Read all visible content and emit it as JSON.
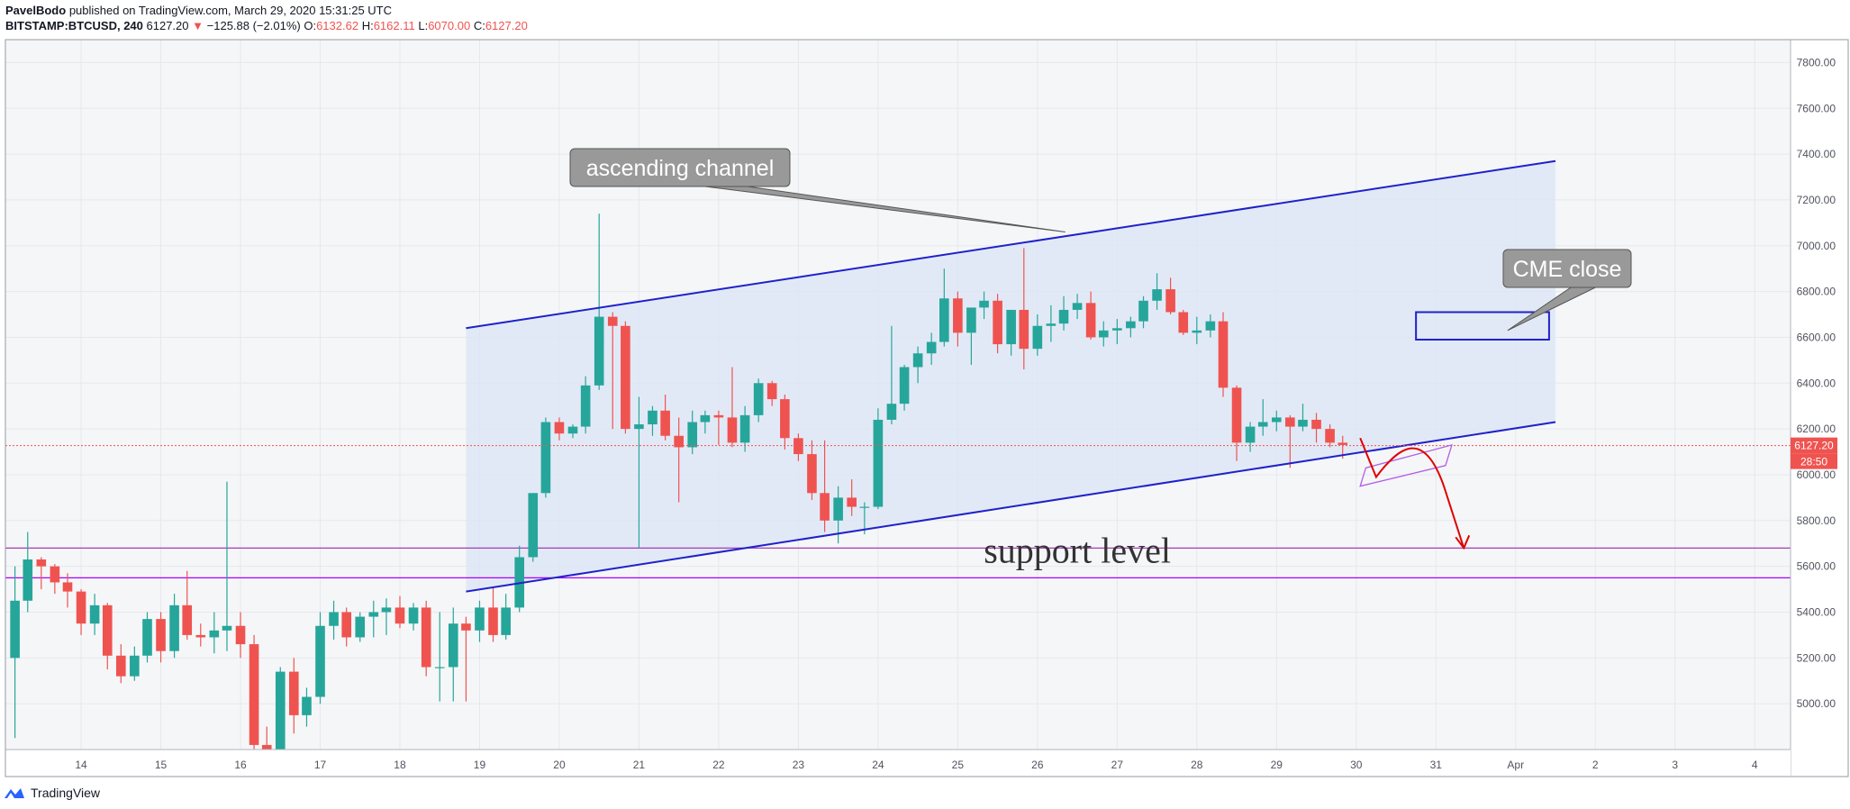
{
  "header": {
    "author": "PavelBodo",
    "published_text": "published on TradingView.com, March 29, 2020 15:31:25 UTC",
    "symbol": "BITSTAMP:BTCUSD, 240",
    "last": "6127.20",
    "change": "−125.88 (−2.01%)",
    "o_label": "O:",
    "o_value": "6132.62",
    "h_label": "H:",
    "h_value": "6162.11",
    "l_label": "L:",
    "l_value": "6070.00",
    "c_label": "C:",
    "c_value": "6127.20"
  },
  "footer": {
    "brand": "TradingView"
  },
  "colors": {
    "up": "#26a69a",
    "down": "#ef5350",
    "channel": "#1f22c9",
    "support": "#9c27b0",
    "channel_fill": "#dbe4f6",
    "arrow": "#e00000"
  },
  "chart_data": {
    "type": "candlestick",
    "title": "",
    "ylim": [
      4800,
      7900
    ],
    "y_ticks": [
      5000,
      5200,
      5400,
      5600,
      5800,
      6000,
      6200,
      6400,
      6600,
      6800,
      7000,
      7200,
      7400,
      7600,
      7800
    ],
    "y_tick_labels": [
      "5000.00",
      "5200.00",
      "5400.00",
      "5600.00",
      "5800.00",
      "6000.00",
      "6200.00",
      "6400.00",
      "6600.00",
      "6800.00",
      "7000.00",
      "7200.00",
      "7400.00",
      "7600.00",
      "7800.00"
    ],
    "x_ticks": [
      {
        "label": "14",
        "day": 14
      },
      {
        "label": "15",
        "day": 15
      },
      {
        "label": "16",
        "day": 16
      },
      {
        "label": "17",
        "day": 17
      },
      {
        "label": "18",
        "day": 18
      },
      {
        "label": "19",
        "day": 19
      },
      {
        "label": "20",
        "day": 20
      },
      {
        "label": "21",
        "day": 21
      },
      {
        "label": "22",
        "day": 22
      },
      {
        "label": "23",
        "day": 23
      },
      {
        "label": "24",
        "day": 24
      },
      {
        "label": "25",
        "day": 25
      },
      {
        "label": "26",
        "day": 26
      },
      {
        "label": "27",
        "day": 27
      },
      {
        "label": "28",
        "day": 28
      },
      {
        "label": "29",
        "day": 29
      },
      {
        "label": "30",
        "day": 30
      },
      {
        "label": "31",
        "day": 31
      },
      {
        "label": "Apr",
        "day": 32
      },
      {
        "label": "2",
        "day": 33
      },
      {
        "label": "3",
        "day": 34
      },
      {
        "label": "4",
        "day": 35
      }
    ],
    "x_range_days": [
      13.05,
      35.45
    ],
    "candles": [
      [
        13.0,
        5400,
        5450,
        5050,
        5200
      ],
      [
        13.17,
        5200,
        5600,
        4850,
        5450
      ],
      [
        13.33,
        5450,
        5750,
        5400,
        5630
      ],
      [
        13.5,
        5630,
        5640,
        5500,
        5600
      ],
      [
        13.67,
        5600,
        5610,
        5480,
        5530
      ],
      [
        13.83,
        5530,
        5570,
        5420,
        5490
      ],
      [
        14.0,
        5490,
        5500,
        5300,
        5350
      ],
      [
        14.17,
        5350,
        5480,
        5300,
        5430
      ],
      [
        14.33,
        5430,
        5440,
        5150,
        5210
      ],
      [
        14.5,
        5210,
        5260,
        5090,
        5120
      ],
      [
        14.67,
        5120,
        5250,
        5100,
        5210
      ],
      [
        14.83,
        5210,
        5400,
        5180,
        5370
      ],
      [
        15.0,
        5370,
        5400,
        5180,
        5230
      ],
      [
        15.17,
        5230,
        5480,
        5200,
        5430
      ],
      [
        15.33,
        5430,
        5580,
        5280,
        5300
      ],
      [
        15.5,
        5300,
        5350,
        5250,
        5290
      ],
      [
        15.67,
        5290,
        5400,
        5220,
        5320
      ],
      [
        15.83,
        5320,
        5970,
        5230,
        5340
      ],
      [
        16.0,
        5340,
        5400,
        5200,
        5260
      ],
      [
        16.17,
        5260,
        5300,
        4790,
        4820
      ],
      [
        16.33,
        4820,
        4900,
        4700,
        4780
      ],
      [
        16.5,
        4780,
        5160,
        4760,
        5140
      ],
      [
        16.67,
        5140,
        5200,
        4870,
        4950
      ],
      [
        16.83,
        4950,
        5070,
        4900,
        5030
      ],
      [
        17.0,
        5030,
        5400,
        5000,
        5340
      ],
      [
        17.17,
        5340,
        5450,
        5280,
        5400
      ],
      [
        17.33,
        5400,
        5420,
        5250,
        5290
      ],
      [
        17.5,
        5290,
        5400,
        5270,
        5380
      ],
      [
        17.67,
        5380,
        5450,
        5290,
        5400
      ],
      [
        17.83,
        5400,
        5460,
        5300,
        5420
      ],
      [
        18.0,
        5420,
        5470,
        5330,
        5350
      ],
      [
        18.17,
        5350,
        5440,
        5320,
        5420
      ],
      [
        18.33,
        5420,
        5450,
        5120,
        5160
      ],
      [
        18.5,
        5160,
        5400,
        5010,
        5160
      ],
      [
        18.67,
        5160,
        5420,
        5010,
        5350
      ],
      [
        18.83,
        5350,
        5380,
        5010,
        5320
      ],
      [
        19.0,
        5320,
        5450,
        5270,
        5420
      ],
      [
        19.17,
        5420,
        5510,
        5270,
        5300
      ],
      [
        19.33,
        5300,
        5480,
        5280,
        5420
      ],
      [
        19.5,
        5420,
        5690,
        5400,
        5640
      ],
      [
        19.67,
        5640,
        5920,
        5620,
        5920
      ],
      [
        19.83,
        5920,
        6250,
        5900,
        6230
      ],
      [
        20.0,
        6230,
        6250,
        6150,
        6180
      ],
      [
        20.17,
        6180,
        6220,
        6160,
        6210
      ],
      [
        20.33,
        6210,
        6430,
        6180,
        6390
      ],
      [
        20.5,
        6390,
        7140,
        6370,
        6690
      ],
      [
        20.67,
        6690,
        6710,
        6200,
        6650
      ],
      [
        20.83,
        6650,
        6670,
        6180,
        6200
      ],
      [
        21.0,
        6200,
        6340,
        5680,
        6220
      ],
      [
        21.17,
        6220,
        6300,
        6170,
        6280
      ],
      [
        21.33,
        6280,
        6350,
        6150,
        6170
      ],
      [
        21.5,
        6170,
        6250,
        5880,
        6120
      ],
      [
        21.67,
        6120,
        6280,
        6090,
        6230
      ],
      [
        21.83,
        6230,
        6280,
        6180,
        6260
      ],
      [
        22.0,
        6260,
        6280,
        6130,
        6250
      ],
      [
        22.17,
        6250,
        6470,
        6120,
        6140
      ],
      [
        22.33,
        6140,
        6300,
        6100,
        6260
      ],
      [
        22.5,
        6260,
        6420,
        6230,
        6400
      ],
      [
        22.67,
        6400,
        6410,
        6300,
        6330
      ],
      [
        22.83,
        6330,
        6350,
        6110,
        6160
      ],
      [
        23.0,
        6160,
        6180,
        6060,
        6090
      ],
      [
        23.17,
        6090,
        6150,
        5890,
        5920
      ],
      [
        23.33,
        5920,
        6150,
        5750,
        5800
      ],
      [
        23.5,
        5800,
        5950,
        5700,
        5900
      ],
      [
        23.67,
        5900,
        5980,
        5820,
        5860
      ],
      [
        23.83,
        5860,
        5880,
        5740,
        5860
      ],
      [
        24.0,
        5860,
        6290,
        5850,
        6240
      ],
      [
        24.17,
        6240,
        6650,
        6220,
        6310
      ],
      [
        24.33,
        6310,
        6480,
        6280,
        6470
      ],
      [
        24.5,
        6470,
        6560,
        6400,
        6530
      ],
      [
        24.67,
        6530,
        6620,
        6480,
        6580
      ],
      [
        24.83,
        6580,
        6900,
        6560,
        6770
      ],
      [
        25.0,
        6770,
        6800,
        6560,
        6620
      ],
      [
        25.17,
        6620,
        6720,
        6480,
        6730
      ],
      [
        25.33,
        6730,
        6800,
        6680,
        6760
      ],
      [
        25.5,
        6760,
        6790,
        6530,
        6570
      ],
      [
        25.67,
        6570,
        6720,
        6520,
        6720
      ],
      [
        25.83,
        6720,
        6990,
        6460,
        6550
      ],
      [
        26.0,
        6550,
        6700,
        6520,
        6650
      ],
      [
        26.17,
        6650,
        6740,
        6580,
        6660
      ],
      [
        26.33,
        6660,
        6780,
        6630,
        6720
      ],
      [
        26.5,
        6720,
        6790,
        6680,
        6750
      ],
      [
        26.67,
        6750,
        6800,
        6590,
        6600
      ],
      [
        26.83,
        6600,
        6670,
        6560,
        6630
      ],
      [
        27.0,
        6630,
        6680,
        6570,
        6640
      ],
      [
        27.17,
        6640,
        6690,
        6600,
        6670
      ],
      [
        27.33,
        6670,
        6780,
        6640,
        6760
      ],
      [
        27.5,
        6760,
        6880,
        6720,
        6810
      ],
      [
        27.67,
        6810,
        6860,
        6700,
        6710
      ],
      [
        27.83,
        6710,
        6720,
        6610,
        6620
      ],
      [
        28.0,
        6620,
        6690,
        6570,
        6630
      ],
      [
        28.17,
        6630,
        6700,
        6600,
        6670
      ],
      [
        28.33,
        6670,
        6710,
        6340,
        6380
      ],
      [
        28.5,
        6380,
        6390,
        6060,
        6140
      ],
      [
        28.67,
        6140,
        6230,
        6100,
        6210
      ],
      [
        28.83,
        6210,
        6330,
        6170,
        6230
      ],
      [
        29.0,
        6230,
        6280,
        6190,
        6250
      ],
      [
        29.17,
        6250,
        6260,
        6030,
        6210
      ],
      [
        29.33,
        6210,
        6310,
        6190,
        6240
      ],
      [
        29.5,
        6240,
        6270,
        6140,
        6200
      ],
      [
        29.67,
        6200,
        6220,
        6120,
        6140
      ],
      [
        29.83,
        6140,
        6170,
        6070,
        6130
      ]
    ],
    "current_price": {
      "value": 6127.2,
      "label": "6127.20",
      "countdown": "28:50"
    },
    "annotations": {
      "channel": {
        "upper": [
          [
            18.83,
            6640
          ],
          [
            32.5,
            7370
          ]
        ],
        "lower": [
          [
            18.83,
            5490
          ],
          [
            32.5,
            6230
          ]
        ],
        "label": "ascending channel",
        "label_pointer": [
          26.35,
          7060
        ]
      },
      "support_lines": [
        {
          "price": 5680,
          "color": "#9c27b0"
        },
        {
          "price": 5550,
          "color": "#aa00ff"
        }
      ],
      "support_label": "support level",
      "support_label_anchor": [
        26.5,
        5680
      ],
      "cme_box": {
        "x0": 30.75,
        "x1": 32.42,
        "p0": 6590,
        "p1": 6710
      },
      "cme_label": "CME close",
      "cme_label_pointer": [
        31.9,
        6630
      ],
      "forecast_box": [
        [
          30.05,
          5950
        ],
        [
          30.12,
          6030
        ],
        [
          31.2,
          6130
        ],
        [
          31.12,
          6040
        ]
      ],
      "forecast_path": [
        [
          30.05,
          6160
        ],
        [
          30.25,
          5990
        ],
        [
          30.55,
          6090
        ],
        [
          30.85,
          6080
        ],
        [
          31.1,
          5950
        ],
        [
          31.35,
          5680
        ]
      ]
    }
  }
}
